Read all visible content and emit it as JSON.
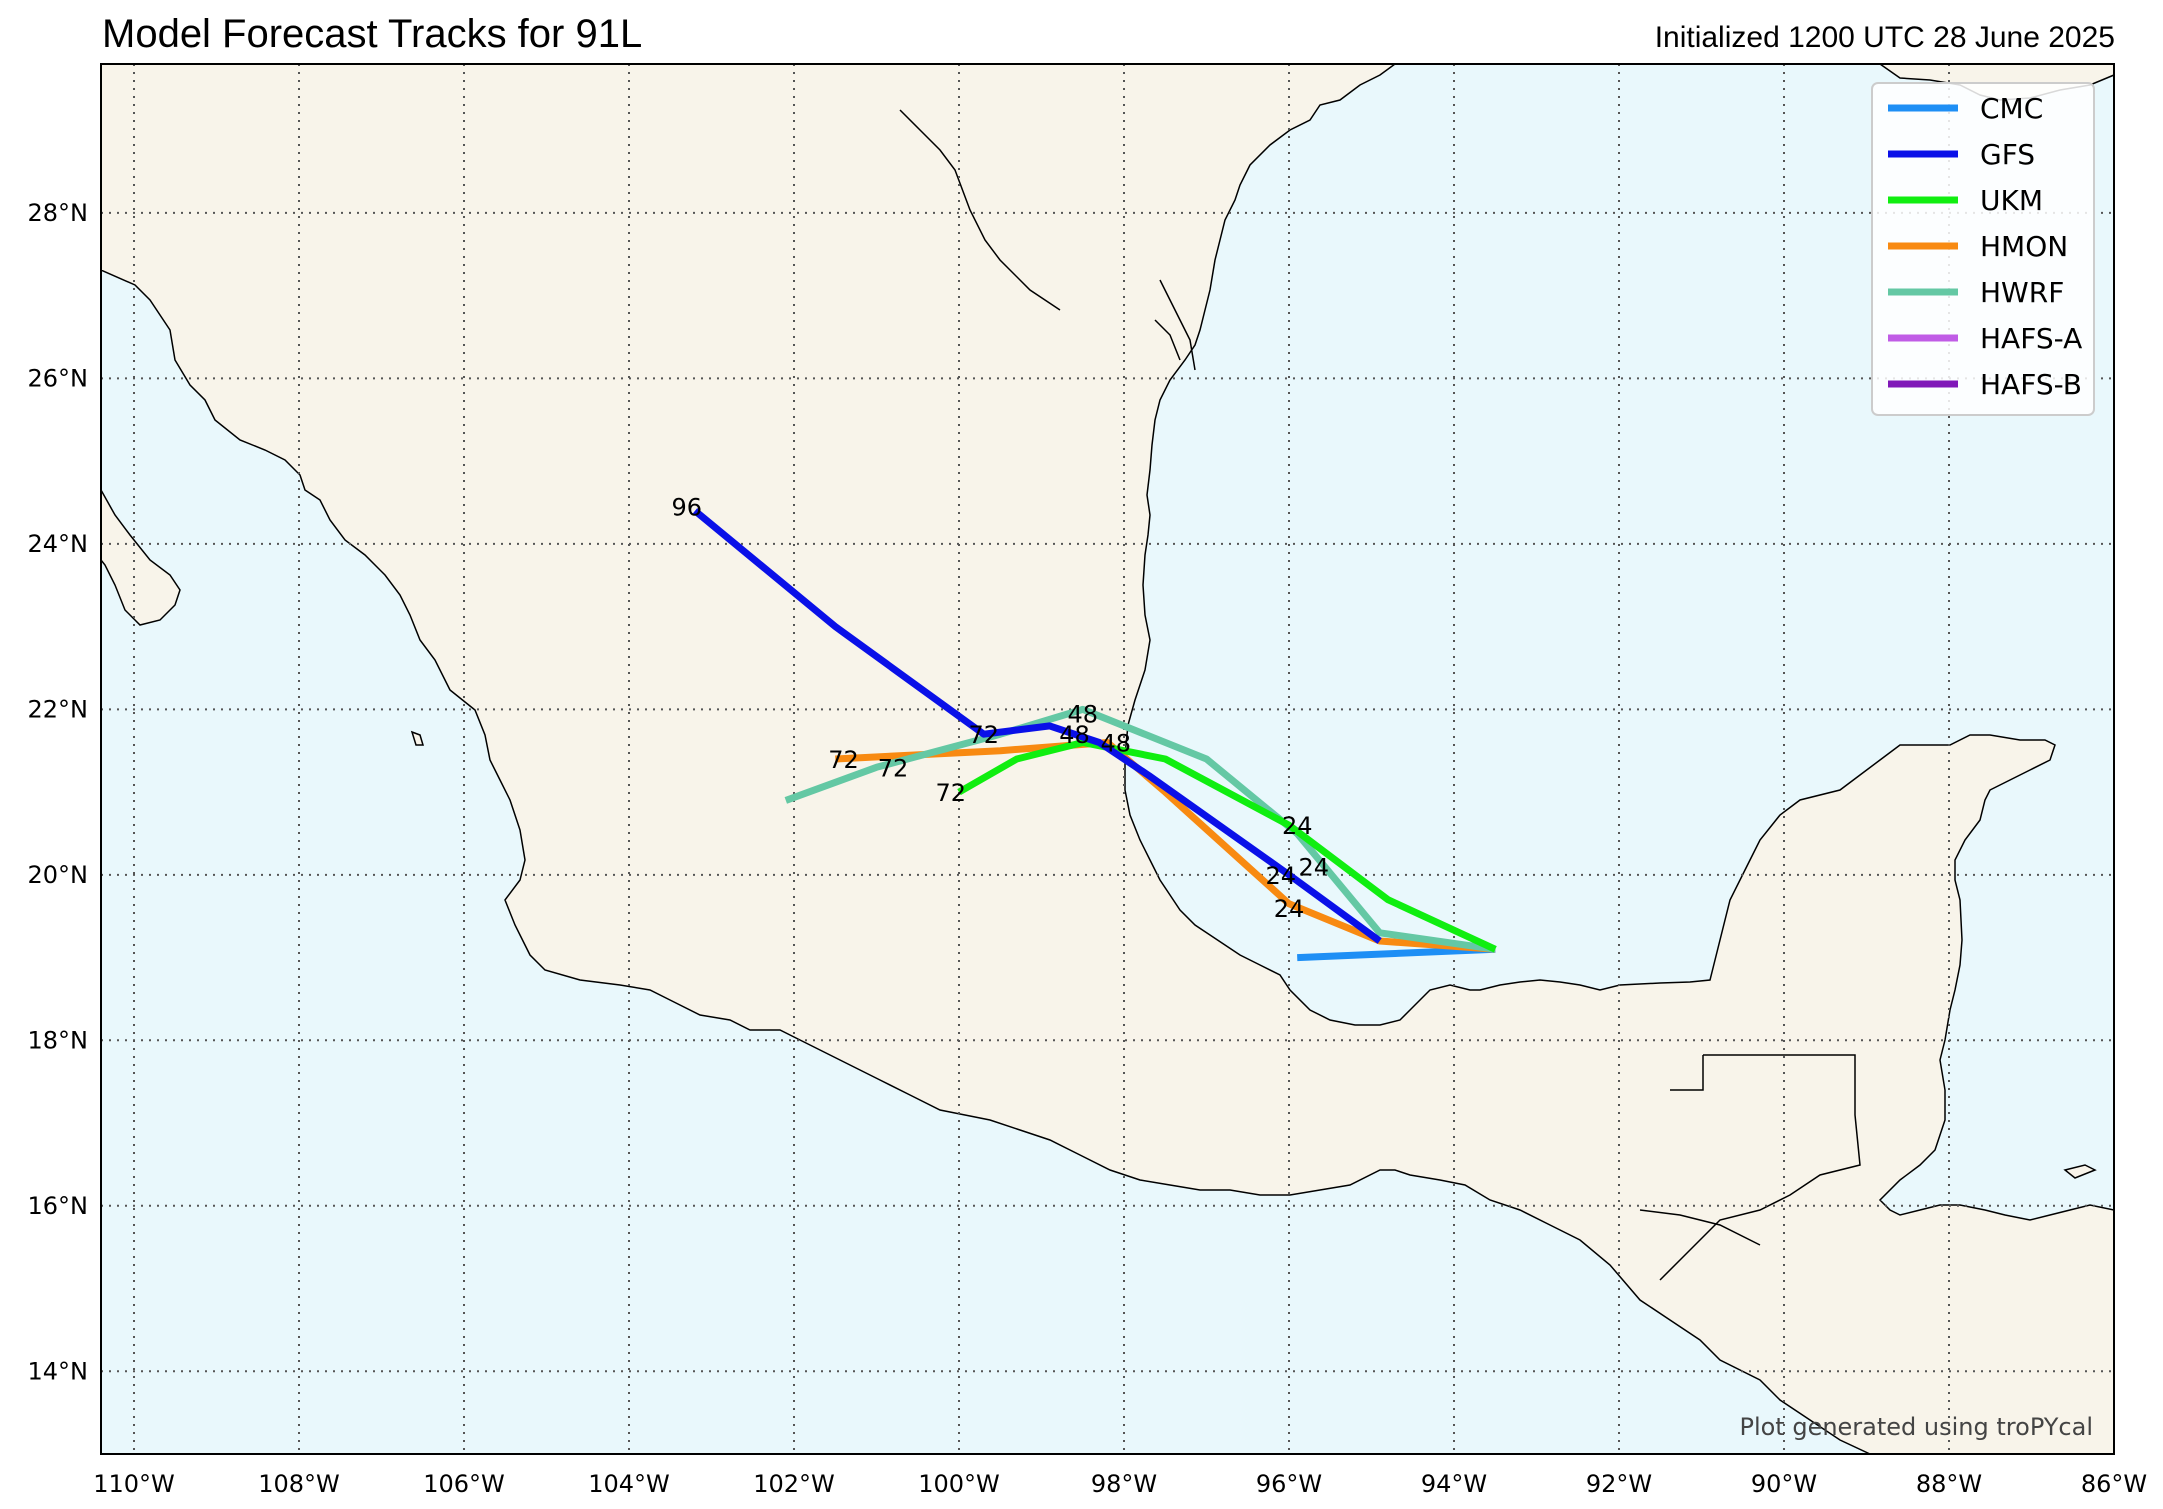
{
  "header": {
    "title": "Model Forecast Tracks for 91L",
    "initialized": "Initialized 1200 UTC 28 June 2025"
  },
  "credit": "Plot generated using troPYcal",
  "colors": {
    "ocean": "#e9f8fc",
    "land": "#f8f4ea",
    "coast": "#000000",
    "grid": "#555555"
  },
  "map_extent": {
    "lon": [
      -110.4,
      -86
    ],
    "lat": [
      13,
      29.8
    ]
  },
  "axes": {
    "lat_ticks": [
      {
        "value": 28,
        "label": "28°N"
      },
      {
        "value": 26,
        "label": "26°N"
      },
      {
        "value": 24,
        "label": "24°N"
      },
      {
        "value": 22,
        "label": "22°N"
      },
      {
        "value": 20,
        "label": "20°N"
      },
      {
        "value": 18,
        "label": "18°N"
      },
      {
        "value": 16,
        "label": "16°N"
      },
      {
        "value": 14,
        "label": "14°N"
      }
    ],
    "lon_ticks": [
      {
        "value": -110,
        "label": "110°W"
      },
      {
        "value": -108,
        "label": "108°W"
      },
      {
        "value": -106,
        "label": "106°W"
      },
      {
        "value": -104,
        "label": "104°W"
      },
      {
        "value": -102,
        "label": "102°W"
      },
      {
        "value": -100,
        "label": "100°W"
      },
      {
        "value": -98,
        "label": "98°W"
      },
      {
        "value": -96,
        "label": "96°W"
      },
      {
        "value": -94,
        "label": "94°W"
      },
      {
        "value": -92,
        "label": "92°W"
      },
      {
        "value": -90,
        "label": "90°W"
      },
      {
        "value": -88,
        "label": "88°W"
      },
      {
        "value": -86,
        "label": "86°W"
      }
    ]
  },
  "legend": {
    "position": "top-right",
    "entries": [
      {
        "name": "CMC",
        "color": "#1e8ff5"
      },
      {
        "name": "GFS",
        "color": "#0a10e8"
      },
      {
        "name": "UKM",
        "color": "#10ee10"
      },
      {
        "name": "HMON",
        "color": "#f88a12"
      },
      {
        "name": "HWRF",
        "color": "#64c8a4"
      },
      {
        "name": "HAFS-A",
        "color": "#c05ce6"
      },
      {
        "name": "HAFS-B",
        "color": "#8018b8"
      }
    ]
  },
  "tracks": [
    {
      "model": "CMC",
      "color": "#1e8ff5",
      "points": [
        [
          -93.5,
          19.1
        ],
        [
          -95.9,
          19.0
        ]
      ],
      "labels": []
    },
    {
      "model": "HMON",
      "color": "#f88a12",
      "points": [
        [
          -93.5,
          19.1
        ],
        [
          -94.9,
          19.2
        ],
        [
          -96.0,
          19.65
        ],
        [
          -96.5,
          20.1
        ],
        [
          -97.5,
          21.0
        ],
        [
          -98.2,
          21.6
        ],
        [
          -99.5,
          21.5
        ],
        [
          -101.5,
          21.4
        ]
      ],
      "labels": [
        {
          "text": "24",
          "lon": -96.0,
          "lat": 19.6
        },
        {
          "text": "72",
          "lon": -101.4,
          "lat": 21.4
        }
      ]
    },
    {
      "model": "HWRF",
      "color": "#64c8a4",
      "points": [
        [
          -93.5,
          19.1
        ],
        [
          -94.9,
          19.3
        ],
        [
          -95.9,
          20.5
        ],
        [
          -97.0,
          21.4
        ],
        [
          -98.5,
          22.0
        ],
        [
          -99.5,
          21.7
        ],
        [
          -101.0,
          21.3
        ],
        [
          -102.1,
          20.9
        ]
      ],
      "labels": [
        {
          "text": "24",
          "lon": -95.7,
          "lat": 20.1
        },
        {
          "text": "48",
          "lon": -98.5,
          "lat": 21.95
        },
        {
          "text": "72",
          "lon": -100.8,
          "lat": 21.3
        }
      ]
    },
    {
      "model": "UKM",
      "color": "#10ee10",
      "points": [
        [
          -93.5,
          19.1
        ],
        [
          -94.8,
          19.7
        ],
        [
          -96.0,
          20.6
        ],
        [
          -97.5,
          21.4
        ],
        [
          -98.5,
          21.6
        ],
        [
          -99.3,
          21.4
        ],
        [
          -100.0,
          21.0
        ]
      ],
      "labels": [
        {
          "text": "24",
          "lon": -95.9,
          "lat": 20.6
        },
        {
          "text": "48",
          "lon": -98.1,
          "lat": 21.6
        },
        {
          "text": "72",
          "lon": -100.1,
          "lat": 21.0
        }
      ]
    },
    {
      "model": "GFS",
      "color": "#0a10e8",
      "points": [
        [
          -94.9,
          19.2
        ],
        [
          -96.0,
          20.0
        ],
        [
          -97.7,
          21.2
        ],
        [
          -98.3,
          21.6
        ],
        [
          -98.9,
          21.8
        ],
        [
          -99.7,
          21.7
        ],
        [
          -101.5,
          23.0
        ],
        [
          -103.2,
          24.4
        ]
      ],
      "labels": [
        {
          "text": "24",
          "lon": -96.1,
          "lat": 20.0
        },
        {
          "text": "48",
          "lon": -98.6,
          "lat": 21.7
        },
        {
          "text": "72",
          "lon": -99.7,
          "lat": 21.7
        },
        {
          "text": "96",
          "lon": -103.3,
          "lat": 24.45
        }
      ]
    }
  ]
}
